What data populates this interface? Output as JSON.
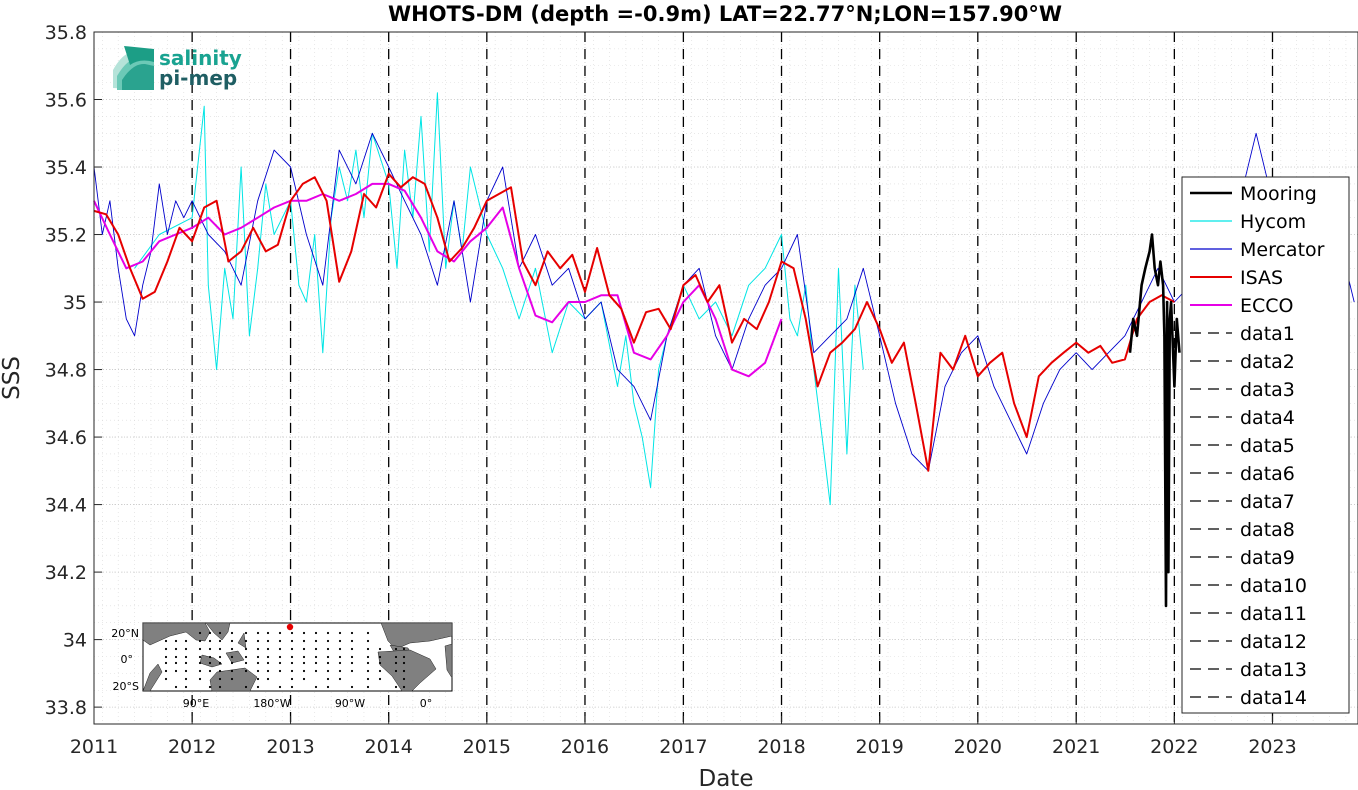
{
  "chart_data": {
    "type": "line",
    "title": "WHOTS-DM (depth =-0.9m) LAT=22.77°N;LON=157.90°W",
    "xlabel": "Date",
    "ylabel": "SSS",
    "xlim": [
      "2011-01-01",
      "2023-11-15"
    ],
    "ylim": [
      33.75,
      35.8
    ],
    "x_ticks": [
      "2011",
      "2012",
      "2013",
      "2014",
      "2015",
      "2016",
      "2017",
      "2018",
      "2019",
      "2020",
      "2021",
      "2022",
      "2023"
    ],
    "y_ticks": [
      33.8,
      34,
      34.2,
      34.4,
      34.6,
      34.8,
      35,
      35.2,
      35.4,
      35.6,
      35.8
    ],
    "y_tick_labels": [
      "33.8",
      "34",
      "34.2",
      "34.4",
      "34.6",
      "34.8",
      "35",
      "35.2",
      "35.4",
      "35.6",
      "35.8"
    ],
    "grid": true,
    "legend_placement": "right",
    "legend": [
      "Mooring",
      "Hycom",
      "Mercator",
      "ISAS",
      "ECCO",
      "data1",
      "data2",
      "data3",
      "data4",
      "data5",
      "data6",
      "data7",
      "data8",
      "data9",
      "data10",
      "data11",
      "data12",
      "data13",
      "data14"
    ],
    "vertical_lines": [
      "2012-01-01",
      "2013-01-01",
      "2014-01-01",
      "2015-01-01",
      "2016-01-01",
      "2017-01-01",
      "2018-01-01",
      "2019-01-01",
      "2020-01-01",
      "2021-01-01",
      "2022-01-01",
      "2023-01-01"
    ],
    "series": [
      {
        "name": "Mooring",
        "color": "#000000",
        "x": [
          "2021-07-20",
          "2021-08-01",
          "2021-08-15",
          "2021-09-01",
          "2021-09-15",
          "2021-10-01",
          "2021-10-10",
          "2021-10-20",
          "2021-11-01",
          "2021-11-10",
          "2021-11-20",
          "2021-11-25",
          "2021-12-01",
          "2021-12-05",
          "2021-12-10",
          "2021-12-15",
          "2021-12-20",
          "2022-01-01",
          "2022-01-10",
          "2022-01-20"
        ],
        "y": [
          34.85,
          34.95,
          34.9,
          35.05,
          35.1,
          35.15,
          35.2,
          35.1,
          35.05,
          35.12,
          35.05,
          34.9,
          34.1,
          35.0,
          34.2,
          34.95,
          35.0,
          34.75,
          34.95,
          34.85
        ]
      },
      {
        "name": "Hycom",
        "color": "#00e5e5",
        "x": [
          "2011-06-01",
          "2011-09-01",
          "2012-01-01",
          "2012-02-15",
          "2012-03-01",
          "2012-04-01",
          "2012-05-01",
          "2012-06-01",
          "2012-07-01",
          "2012-08-01",
          "2012-09-01",
          "2012-10-01",
          "2012-11-01",
          "2013-01-01",
          "2013-02-01",
          "2013-03-01",
          "2013-04-01",
          "2013-05-01",
          "2013-06-01",
          "2013-07-01",
          "2013-08-01",
          "2013-09-01",
          "2013-10-01",
          "2013-11-01",
          "2014-01-01",
          "2014-02-01",
          "2014-03-01",
          "2014-04-01",
          "2014-05-01",
          "2014-06-01",
          "2014-07-01",
          "2014-08-01",
          "2014-09-01",
          "2014-10-01",
          "2014-11-01",
          "2015-01-01",
          "2015-03-01",
          "2015-05-01",
          "2015-07-01",
          "2015-09-01",
          "2015-11-01",
          "2016-01-01",
          "2016-03-01",
          "2016-05-01",
          "2016-06-01",
          "2016-07-01",
          "2016-08-01",
          "2016-09-01",
          "2016-10-01",
          "2016-11-01",
          "2017-01-01",
          "2017-03-01",
          "2017-05-01",
          "2017-07-01",
          "2017-09-01",
          "2017-11-01",
          "2018-01-01",
          "2018-02-01",
          "2018-03-01",
          "2018-04-01",
          "2018-05-01",
          "2018-06-01",
          "2018-07-01",
          "2018-08-01",
          "2018-09-01",
          "2018-10-01",
          "2018-11-01"
        ],
        "y": [
          35.1,
          35.2,
          35.25,
          35.58,
          35.05,
          34.8,
          35.1,
          34.95,
          35.4,
          34.9,
          35.1,
          35.35,
          35.2,
          35.3,
          35.05,
          35.0,
          35.2,
          34.85,
          35.25,
          35.4,
          35.3,
          35.45,
          35.25,
          35.5,
          35.35,
          35.1,
          35.45,
          35.25,
          35.55,
          35.15,
          35.62,
          35.1,
          35.3,
          35.15,
          35.4,
          35.2,
          35.1,
          34.95,
          35.1,
          34.85,
          35.0,
          34.95,
          35.0,
          34.75,
          34.9,
          34.7,
          34.6,
          34.45,
          34.8,
          34.9,
          35.05,
          34.95,
          35.0,
          34.9,
          35.05,
          35.1,
          35.2,
          34.95,
          34.9,
          35.05,
          34.8,
          34.6,
          34.4,
          35.1,
          34.55,
          35.05,
          34.8
        ]
      },
      {
        "name": "Mercator",
        "color": "#0000cc",
        "x": [
          "2011-01-01",
          "2011-02-01",
          "2011-03-01",
          "2011-04-01",
          "2011-05-01",
          "2011-06-01",
          "2011-07-01",
          "2011-08-01",
          "2011-09-01",
          "2011-10-01",
          "2011-11-01",
          "2011-12-01",
          "2012-01-01",
          "2012-03-01",
          "2012-05-01",
          "2012-07-01",
          "2012-09-01",
          "2012-11-01",
          "2013-01-01",
          "2013-03-01",
          "2013-05-01",
          "2013-07-01",
          "2013-09-01",
          "2013-11-01",
          "2014-01-01",
          "2014-03-01",
          "2014-05-01",
          "2014-07-01",
          "2014-09-01",
          "2014-11-01",
          "2015-01-01",
          "2015-03-01",
          "2015-05-01",
          "2015-07-01",
          "2015-09-01",
          "2015-11-01",
          "2016-01-01",
          "2016-03-01",
          "2016-05-01",
          "2016-07-01",
          "2016-09-01",
          "2016-11-01",
          "2017-01-01",
          "2017-03-01",
          "2017-05-01",
          "2017-07-01",
          "2017-09-01",
          "2017-11-01",
          "2018-01-01",
          "2018-03-01",
          "2018-05-01",
          "2018-07-01",
          "2018-09-01",
          "2018-11-01",
          "2019-01-01",
          "2019-03-01",
          "2019-05-01",
          "2019-07-01",
          "2019-09-01",
          "2019-11-01",
          "2020-01-01",
          "2020-03-01",
          "2020-05-01",
          "2020-07-01",
          "2020-09-01",
          "2020-11-01",
          "2021-01-01",
          "2021-03-01",
          "2021-05-01",
          "2021-07-01",
          "2021-09-01",
          "2021-11-01",
          "2022-01-01",
          "2022-03-01",
          "2022-05-01",
          "2022-07-01",
          "2022-09-01",
          "2022-11-01",
          "2023-01-01",
          "2023-03-01",
          "2023-05-01",
          "2023-07-01",
          "2023-09-01",
          "2023-11-01"
        ],
        "y": [
          35.4,
          35.2,
          35.3,
          35.1,
          34.95,
          34.9,
          35.05,
          35.15,
          35.35,
          35.2,
          35.3,
          35.25,
          35.3,
          35.2,
          35.15,
          35.05,
          35.3,
          35.45,
          35.4,
          35.2,
          35.05,
          35.45,
          35.35,
          35.5,
          35.4,
          35.3,
          35.2,
          35.05,
          35.3,
          35.0,
          35.3,
          35.4,
          35.1,
          35.2,
          35.05,
          35.1,
          34.95,
          35.0,
          34.8,
          34.75,
          34.65,
          34.9,
          35.05,
          35.1,
          34.9,
          34.8,
          34.95,
          35.05,
          35.1,
          35.2,
          34.85,
          34.9,
          34.95,
          35.1,
          34.9,
          34.7,
          34.55,
          34.5,
          34.75,
          34.85,
          34.9,
          34.75,
          34.65,
          34.55,
          34.7,
          34.8,
          34.85,
          34.8,
          34.85,
          34.9,
          35.0,
          35.1,
          35.0,
          35.05,
          35.1,
          35.2,
          35.3,
          35.5,
          35.3,
          35.1,
          35.0,
          35.05,
          35.2,
          35.0
        ]
      },
      {
        "name": "ISAS",
        "color": "#e60000",
        "x": [
          "2011-01-01",
          "2011-02-15",
          "2011-04-01",
          "2011-05-15",
          "2011-07-01",
          "2011-08-15",
          "2011-10-01",
          "2011-11-15",
          "2012-01-01",
          "2012-02-15",
          "2012-04-01",
          "2012-05-15",
          "2012-07-01",
          "2012-08-15",
          "2012-10-01",
          "2012-11-15",
          "2013-01-01",
          "2013-02-15",
          "2013-04-01",
          "2013-05-15",
          "2013-07-01",
          "2013-08-15",
          "2013-10-01",
          "2013-11-15",
          "2014-01-01",
          "2014-02-15",
          "2014-04-01",
          "2014-05-15",
          "2014-07-01",
          "2014-08-15",
          "2014-10-01",
          "2014-11-15",
          "2015-01-01",
          "2015-02-15",
          "2015-04-01",
          "2015-05-15",
          "2015-07-01",
          "2015-08-15",
          "2015-10-01",
          "2015-11-15",
          "2016-01-01",
          "2016-02-15",
          "2016-04-01",
          "2016-05-15",
          "2016-07-01",
          "2016-08-15",
          "2016-10-01",
          "2016-11-15",
          "2017-01-01",
          "2017-02-15",
          "2017-04-01",
          "2017-05-15",
          "2017-07-01",
          "2017-08-15",
          "2017-10-01",
          "2017-11-15",
          "2018-01-01",
          "2018-02-15",
          "2018-04-01",
          "2018-05-15",
          "2018-07-01",
          "2018-08-15",
          "2018-10-01",
          "2018-11-15",
          "2019-01-01",
          "2019-02-15",
          "2019-04-01",
          "2019-05-15",
          "2019-07-01",
          "2019-08-15",
          "2019-10-01",
          "2019-11-15",
          "2020-01-01",
          "2020-02-15",
          "2020-04-01",
          "2020-05-15",
          "2020-07-01",
          "2020-08-15",
          "2020-10-01",
          "2020-11-15",
          "2021-01-01",
          "2021-02-15",
          "2021-04-01",
          "2021-05-15",
          "2021-07-01",
          "2021-08-15",
          "2021-10-01",
          "2021-11-15",
          "2022-01-01"
        ],
        "y": [
          35.27,
          35.26,
          35.2,
          35.1,
          35.01,
          35.03,
          35.12,
          35.22,
          35.18,
          35.28,
          35.3,
          35.12,
          35.15,
          35.22,
          35.15,
          35.17,
          35.3,
          35.35,
          35.37,
          35.3,
          35.06,
          35.15,
          35.32,
          35.28,
          35.38,
          35.34,
          35.37,
          35.35,
          35.25,
          35.12,
          35.16,
          35.22,
          35.3,
          35.32,
          35.34,
          35.12,
          35.05,
          35.15,
          35.1,
          35.14,
          35.03,
          35.16,
          35.02,
          34.98,
          34.88,
          34.97,
          34.98,
          34.92,
          35.05,
          35.08,
          35.0,
          35.05,
          34.88,
          34.95,
          34.92,
          35.0,
          35.12,
          35.1,
          34.95,
          34.75,
          34.85,
          34.88,
          34.92,
          35.0,
          34.92,
          34.82,
          34.88,
          34.7,
          34.5,
          34.85,
          34.8,
          34.9,
          34.78,
          34.82,
          34.85,
          34.7,
          34.6,
          34.78,
          34.82,
          34.85,
          34.88,
          34.85,
          34.87,
          34.82,
          34.83,
          34.95,
          35.0,
          35.02,
          35.0
        ]
      },
      {
        "name": "ECCO",
        "color": "#e600e6",
        "x": [
          "2011-01-01",
          "2011-03-01",
          "2011-05-01",
          "2011-07-01",
          "2011-09-01",
          "2011-11-01",
          "2012-01-01",
          "2012-03-01",
          "2012-05-01",
          "2012-07-01",
          "2012-09-01",
          "2012-11-01",
          "2013-01-01",
          "2013-03-01",
          "2013-05-01",
          "2013-07-01",
          "2013-09-01",
          "2013-11-01",
          "2014-01-01",
          "2014-03-01",
          "2014-05-01",
          "2014-07-01",
          "2014-09-01",
          "2014-11-01",
          "2015-01-01",
          "2015-03-01",
          "2015-05-01",
          "2015-07-01",
          "2015-09-01",
          "2015-11-01",
          "2016-01-01",
          "2016-03-01",
          "2016-05-01",
          "2016-07-01",
          "2016-09-01",
          "2016-11-01",
          "2017-01-01",
          "2017-03-01",
          "2017-05-01",
          "2017-07-01",
          "2017-09-01",
          "2017-11-01",
          "2018-01-01"
        ],
        "y": [
          35.3,
          35.2,
          35.1,
          35.12,
          35.18,
          35.2,
          35.22,
          35.25,
          35.2,
          35.22,
          35.25,
          35.28,
          35.3,
          35.3,
          35.32,
          35.3,
          35.32,
          35.35,
          35.35,
          35.33,
          35.25,
          35.15,
          35.12,
          35.18,
          35.22,
          35.28,
          35.1,
          34.96,
          34.94,
          35.0,
          35.0,
          35.02,
          35.02,
          34.85,
          34.83,
          34.9,
          35.0,
          35.05,
          34.95,
          34.8,
          34.78,
          34.82,
          34.95
        ]
      }
    ]
  },
  "logo": {
    "line1": "salinity",
    "line2": "pi-mep"
  },
  "inset_map": {
    "lat_labels": [
      "20°N",
      "0°",
      "20°S"
    ],
    "lon_labels": [
      "90°E",
      "180°W",
      "90°W",
      "0°"
    ]
  }
}
